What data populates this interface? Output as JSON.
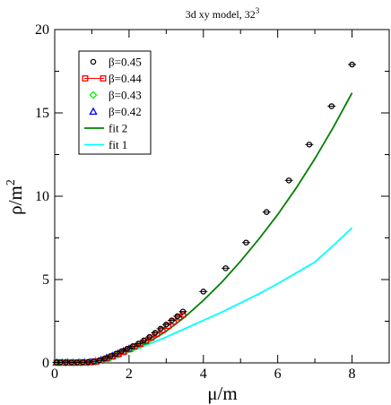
{
  "chart_data": {
    "type": "scatter",
    "title": "3d xy model, 32",
    "title_superscript": "3",
    "xlabel": "μ/m",
    "ylabel": "ρ/m",
    "ylabel_superscript": "2",
    "xlim": [
      0,
      9
    ],
    "ylim": [
      0,
      20
    ],
    "xticks": [
      0,
      2,
      4,
      6,
      8
    ],
    "yticks": [
      0,
      5,
      10,
      15,
      20
    ],
    "xticks_minor": [
      1,
      3,
      5,
      7,
      9
    ],
    "yticks_minor": [
      2.5,
      7.5,
      12.5,
      17.5
    ],
    "legend_position": "top-left",
    "series": [
      {
        "name": "β=0.45",
        "kind": "points",
        "marker": "circle",
        "color": "#000000",
        "x": [
          0.05,
          0.15,
          0.3,
          0.45,
          0.6,
          0.75,
          0.9,
          1.05,
          1.2,
          1.35,
          1.5,
          1.65,
          1.8,
          1.95,
          2.1,
          2.25,
          2.4,
          2.55,
          2.7,
          2.85,
          3.0,
          3.15,
          3.3,
          3.45,
          4.0,
          4.6,
          5.15,
          5.7,
          6.3,
          6.85,
          7.45,
          8.0
        ],
        "y": [
          0.03,
          0.03,
          0.03,
          0.03,
          0.03,
          0.04,
          0.05,
          0.08,
          0.15,
          0.27,
          0.41,
          0.55,
          0.7,
          0.85,
          1.0,
          1.15,
          1.35,
          1.55,
          1.8,
          2.05,
          2.3,
          2.55,
          2.8,
          3.08,
          4.28,
          5.68,
          7.22,
          9.05,
          10.95,
          13.1,
          15.4,
          17.9
        ]
      },
      {
        "name": "β=0.44",
        "kind": "errorbar",
        "marker": "square",
        "color": "#ff0000",
        "x": [
          0.05,
          0.2,
          0.35,
          0.5,
          0.65,
          0.8,
          0.95,
          1.1,
          1.25,
          1.4,
          1.55,
          1.7,
          1.85,
          2.0,
          2.15,
          2.3,
          2.45,
          2.6,
          2.75,
          2.9,
          3.05,
          3.2,
          3.35,
          3.45
        ],
        "y": [
          0.02,
          0.02,
          0.02,
          0.02,
          0.02,
          0.02,
          0.04,
          0.08,
          0.15,
          0.26,
          0.38,
          0.52,
          0.66,
          0.82,
          0.98,
          1.14,
          1.32,
          1.52,
          1.75,
          1.98,
          2.22,
          2.48,
          2.74,
          2.9
        ]
      },
      {
        "name": "β=0.43",
        "kind": "points",
        "marker": "diamond",
        "color": "#00ff00",
        "x": [
          0.1,
          0.3,
          0.5,
          0.7,
          0.9,
          1.1,
          1.3,
          1.5,
          1.7,
          1.9,
          2.1,
          2.3,
          2.5
        ],
        "y": [
          0.02,
          0.02,
          0.02,
          0.02,
          0.03,
          0.07,
          0.17,
          0.32,
          0.5,
          0.68,
          0.88,
          1.08,
          1.3
        ]
      },
      {
        "name": "β=0.42",
        "kind": "points",
        "marker": "triangle",
        "color": "#0000ff",
        "x": [
          0.05,
          0.2,
          0.35,
          0.5,
          0.65,
          0.8,
          0.95,
          1.1,
          1.25,
          1.4,
          1.55,
          1.7,
          1.85,
          2.0
        ],
        "y": [
          0.02,
          0.02,
          0.02,
          0.02,
          0.02,
          0.03,
          0.05,
          0.1,
          0.18,
          0.3,
          0.42,
          0.56,
          0.7,
          0.85
        ]
      },
      {
        "name": "fit 2",
        "kind": "line",
        "color": "#008000",
        "x": [
          1.0,
          1.5,
          2.0,
          2.5,
          3.0,
          3.5,
          4.0,
          4.5,
          5.0,
          5.5,
          6.0,
          6.5,
          7.0,
          7.5,
          8.0
        ],
        "y": [
          0.0,
          0.25,
          0.65,
          1.2,
          1.9,
          2.75,
          3.75,
          4.85,
          6.1,
          7.45,
          8.9,
          10.5,
          12.25,
          14.15,
          16.2
        ]
      },
      {
        "name": "fit 1",
        "kind": "line",
        "color": "#00ffff",
        "x": [
          1.0,
          1.5,
          2.0,
          2.5,
          3.0,
          3.5,
          4.0,
          4.5,
          5.0,
          5.5,
          6.0,
          6.5,
          7.0,
          7.5,
          8.0
        ],
        "y": [
          0.0,
          0.25,
          0.65,
          1.1,
          1.55,
          2.05,
          2.55,
          3.05,
          3.6,
          4.15,
          4.75,
          5.4,
          6.05,
          7.05,
          8.1
        ]
      }
    ]
  }
}
